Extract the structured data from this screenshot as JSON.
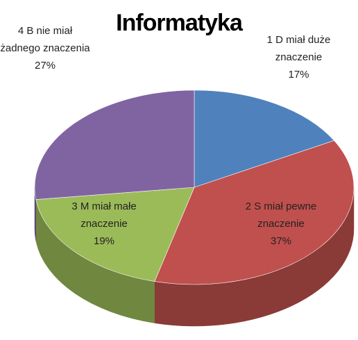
{
  "chart_data": {
    "type": "pie",
    "title": "Informatyka",
    "categories": [
      "1 D miał duże znaczenie",
      "2 S miał pewne znaczenie",
      "3 M miał małe znaczenie",
      "4 B nie miał żadnego znaczenia"
    ],
    "values": [
      17,
      37,
      19,
      27
    ],
    "value_labels": [
      "17%",
      "37%",
      "19%",
      "27%"
    ],
    "colors": [
      "#4f81bd",
      "#c0504d",
      "#9bbb59",
      "#8064a2"
    ]
  }
}
